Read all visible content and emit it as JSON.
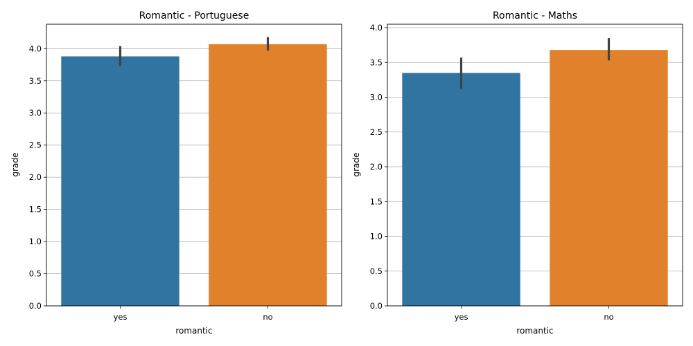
{
  "chart_data": [
    {
      "type": "bar",
      "title": "Romantic - Portuguese",
      "xlabel": "romantic",
      "ylabel": "grade",
      "categories": [
        "yes",
        "no"
      ],
      "values": [
        3.88,
        4.07
      ],
      "error_bars": [
        [
          3.73,
          4.04
        ],
        [
          3.97,
          4.18
        ]
      ],
      "colors": [
        "#3274a1",
        "#e1812c"
      ],
      "ylim": [
        0,
        4.38
      ],
      "yticks": [
        "0.0",
        "0.5",
        "1.0",
        "1.5",
        "2.0",
        "2.5",
        "3.0",
        "3.5",
        "4.0"
      ],
      "grid": "horizontal"
    },
    {
      "type": "bar",
      "title": "Romantic - Maths",
      "xlabel": "romantic",
      "ylabel": "grade",
      "categories": [
        "yes",
        "no"
      ],
      "values": [
        3.35,
        3.68
      ],
      "error_bars": [
        [
          3.12,
          3.57
        ],
        [
          3.53,
          3.85
        ]
      ],
      "colors": [
        "#3274a1",
        "#e1812c"
      ],
      "ylim": [
        0,
        4.05
      ],
      "yticks": [
        "0.0",
        "0.5",
        "1.0",
        "1.5",
        "2.0",
        "2.5",
        "3.0",
        "3.5",
        "4.0"
      ],
      "grid": "horizontal"
    }
  ]
}
